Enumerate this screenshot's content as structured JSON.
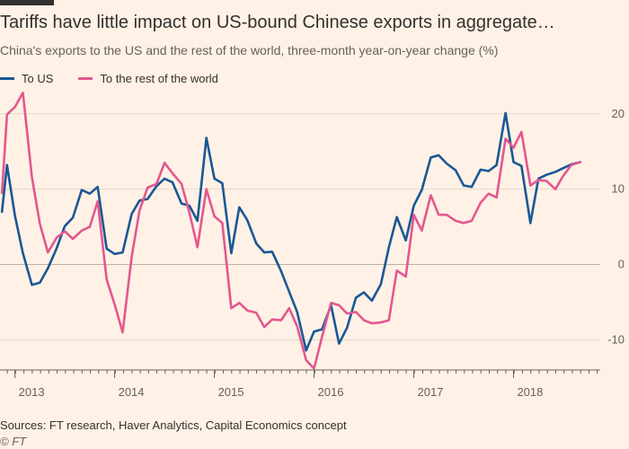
{
  "chart_data": {
    "type": "line",
    "title": "Tariffs have little impact on US-bound Chinese exports in aggregate…",
    "subtitle": "China's exports to the US and the rest of the world, three-month year-on-year change (%)",
    "ylim": [
      -14,
      22
    ],
    "yticks": [
      20,
      10,
      0,
      -10
    ],
    "xlim": [
      2012.85,
      2018.87
    ],
    "xticks": [
      2013,
      2014,
      2015,
      2016,
      2017,
      2018
    ],
    "grid": true,
    "series": [
      {
        "name": "To US",
        "color": "#1a5796",
        "x": [
          2012.87,
          2012.92,
          2013.0,
          2013.08,
          2013.17,
          2013.25,
          2013.33,
          2013.42,
          2013.5,
          2013.58,
          2013.67,
          2013.75,
          2013.83,
          2013.92,
          2014.0,
          2014.08,
          2014.17,
          2014.25,
          2014.33,
          2014.42,
          2014.5,
          2014.58,
          2014.67,
          2014.75,
          2014.83,
          2014.92,
          2015.0,
          2015.08,
          2015.17,
          2015.25,
          2015.33,
          2015.42,
          2015.5,
          2015.58,
          2015.67,
          2015.75,
          2015.83,
          2015.92,
          2016.0,
          2016.08,
          2016.17,
          2016.25,
          2016.33,
          2016.42,
          2016.5,
          2016.58,
          2016.67,
          2016.75,
          2016.83,
          2016.92,
          2017.0,
          2017.08,
          2017.17,
          2017.25,
          2017.33,
          2017.42,
          2017.5,
          2017.58,
          2017.67,
          2017.75,
          2017.83,
          2017.92,
          2018.0,
          2018.08,
          2018.17,
          2018.25,
          2018.33,
          2018.42,
          2018.5,
          2018.58,
          2018.67,
          2018.75,
          2018.83
        ],
        "values": [
          7,
          13.2,
          6.5,
          1.5,
          -2.7,
          -2.4,
          -0.5,
          2.2,
          5.1,
          6.2,
          9.9,
          9.4,
          10.3,
          2.1,
          1.4,
          1.6,
          6.7,
          8.5,
          8.7,
          10.4,
          11.4,
          10.9,
          8.1,
          7.8,
          5.8,
          16.8,
          11.4,
          10.8,
          1.5,
          7.6,
          5.9,
          2.8,
          1.6,
          1.7,
          -0.9,
          -3.6,
          -6.3,
          -11.4,
          -8.9,
          -8.6,
          -5.4,
          -10.5,
          -8.4,
          -4.4,
          -3.7,
          -4.8,
          -2.6,
          2.3,
          6.3,
          3.2,
          7.8,
          9.9,
          14.2,
          14.5,
          13.4,
          12.5,
          10.5,
          10.3,
          12.6,
          12.4,
          13.2,
          20.1,
          13.6,
          13.1,
          5.5,
          11.4,
          11.9,
          12.3,
          12.8,
          13.3,
          13.6,
          null,
          null
        ]
      },
      {
        "name": "To the rest of the world",
        "color": "#e3578f",
        "x": [
          2012.87,
          2012.92,
          2013.0,
          2013.08,
          2013.17,
          2013.25,
          2013.33,
          2013.42,
          2013.5,
          2013.58,
          2013.67,
          2013.75,
          2013.83,
          2013.92,
          2014.0,
          2014.08,
          2014.17,
          2014.25,
          2014.33,
          2014.42,
          2014.5,
          2014.58,
          2014.67,
          2014.75,
          2014.83,
          2014.92,
          2015.0,
          2015.08,
          2015.17,
          2015.25,
          2015.33,
          2015.42,
          2015.5,
          2015.58,
          2015.67,
          2015.75,
          2015.83,
          2015.92,
          2016.0,
          2016.08,
          2016.17,
          2016.25,
          2016.33,
          2016.42,
          2016.5,
          2016.58,
          2016.67,
          2016.75,
          2016.83,
          2016.92,
          2017.0,
          2017.08,
          2017.17,
          2017.25,
          2017.33,
          2017.42,
          2017.5,
          2017.58,
          2017.67,
          2017.75,
          2017.83,
          2017.92,
          2018.0,
          2018.08,
          2018.17,
          2018.25,
          2018.33,
          2018.42,
          2018.5,
          2018.58,
          2018.67,
          2018.75,
          2018.83
        ],
        "values": [
          9.5,
          19.9,
          20.9,
          22.8,
          11.6,
          5.4,
          1.6,
          3.6,
          4.4,
          3.4,
          4.5,
          5.0,
          8.4,
          -2.0,
          -5.3,
          -9.0,
          1.0,
          7.2,
          10.2,
          10.7,
          13.5,
          12.1,
          10.7,
          6.9,
          2.3,
          10.0,
          6.4,
          5.5,
          -5.8,
          -5.1,
          -6.1,
          -6.4,
          -8.3,
          -7.3,
          -7.4,
          -5.8,
          -8.2,
          -12.7,
          -13.8,
          -9.6,
          -5.1,
          -5.4,
          -6.5,
          -6.3,
          -7.4,
          -7.8,
          -7.7,
          -7.4,
          -0.8,
          -1.6,
          6.6,
          4.5,
          9.2,
          6.6,
          6.6,
          5.8,
          5.5,
          5.8,
          8.2,
          9.4,
          8.9,
          16.7,
          15.5,
          17.6,
          10.5,
          11.2,
          11.1,
          10.0,
          11.8,
          13.2,
          13.6,
          null,
          null
        ]
      }
    ]
  },
  "source": "Sources: FT research, Haver Analytics, Capital Economics concept",
  "credit": "© FT"
}
